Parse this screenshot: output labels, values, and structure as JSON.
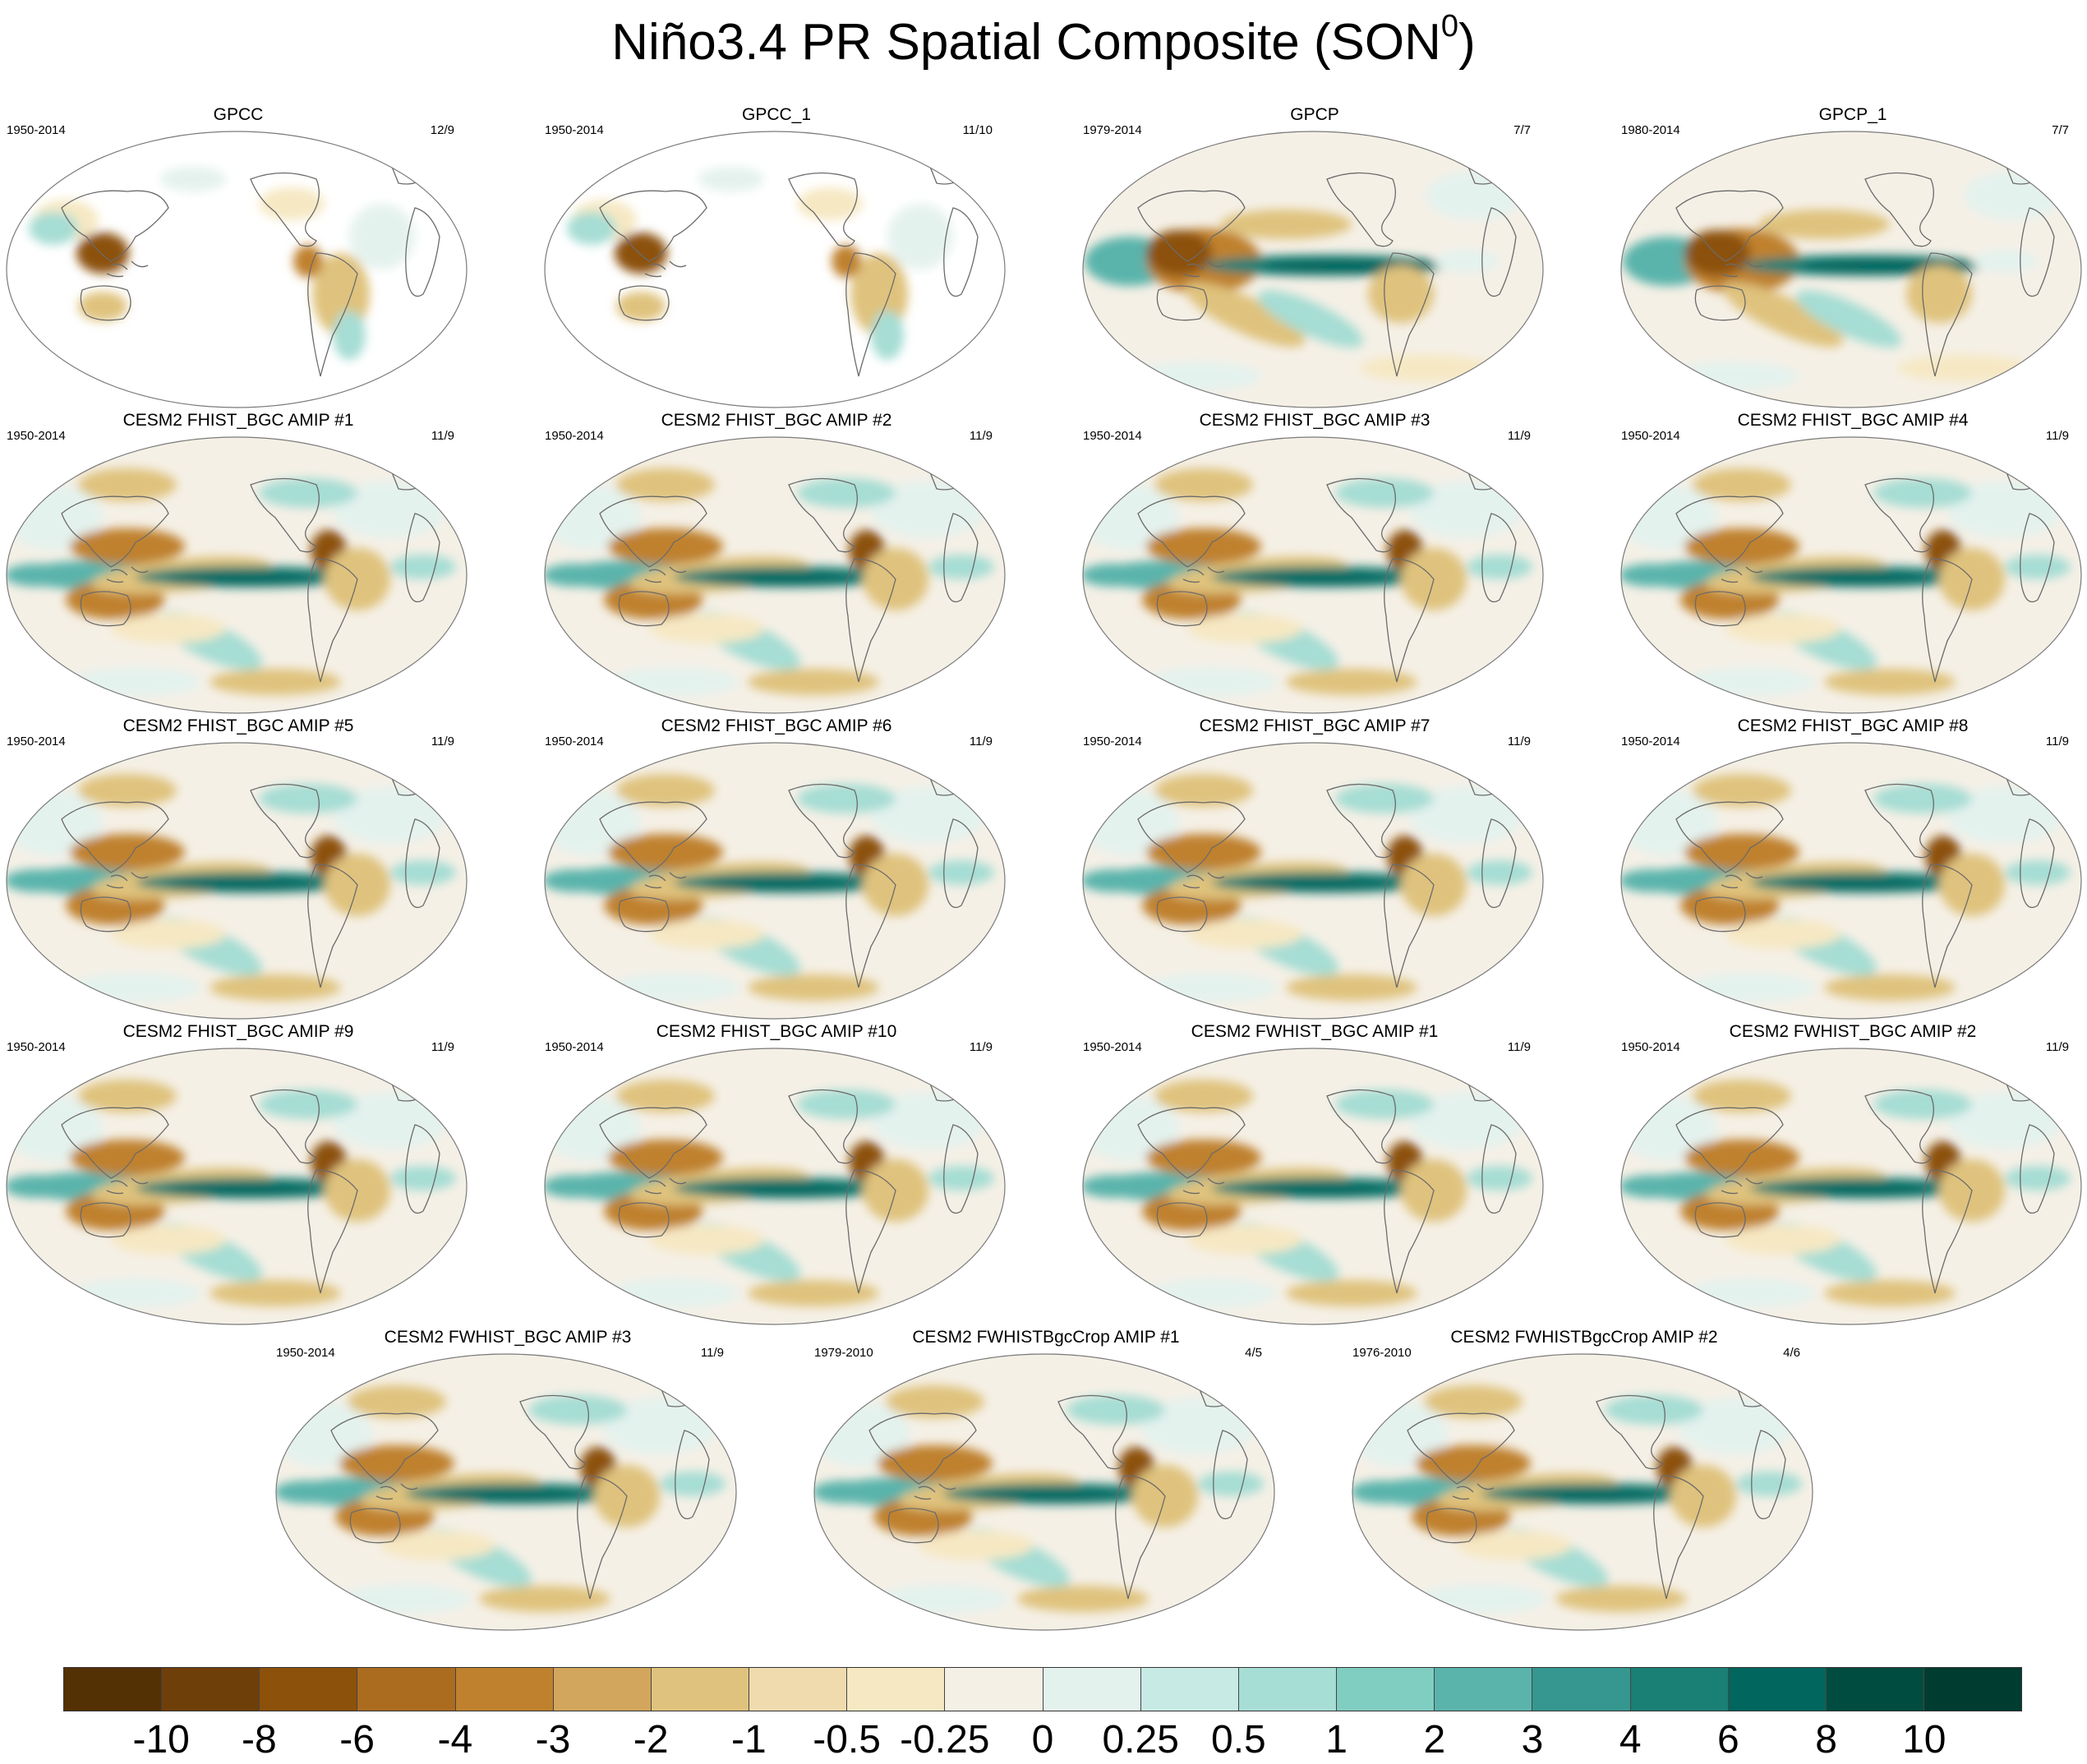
{
  "figure": {
    "title": "Niño3.4 PR Spatial Composite (SON",
    "title_superscript": "0",
    "title_close": ")"
  },
  "panels": [
    {
      "title": "GPCC",
      "period": "1950-2014",
      "count": "12/9",
      "style": "obs-land"
    },
    {
      "title": "GPCC_1",
      "period": "1950-2014",
      "count": "11/10",
      "style": "obs-land"
    },
    {
      "title": "GPCP",
      "period": "1979-2014",
      "count": "7/7",
      "style": "obs-global"
    },
    {
      "title": "GPCP_1",
      "period": "1980-2014",
      "count": "7/7",
      "style": "obs-global"
    },
    {
      "title": "CESM2 FHIST_BGC AMIP #1",
      "period": "1950-2014",
      "count": "11/9",
      "style": "model"
    },
    {
      "title": "CESM2 FHIST_BGC AMIP #2",
      "period": "1950-2014",
      "count": "11/9",
      "style": "model"
    },
    {
      "title": "CESM2 FHIST_BGC AMIP #3",
      "period": "1950-2014",
      "count": "11/9",
      "style": "model"
    },
    {
      "title": "CESM2 FHIST_BGC AMIP #4",
      "period": "1950-2014",
      "count": "11/9",
      "style": "model"
    },
    {
      "title": "CESM2 FHIST_BGC AMIP #5",
      "period": "1950-2014",
      "count": "11/9",
      "style": "model"
    },
    {
      "title": "CESM2 FHIST_BGC AMIP #6",
      "period": "1950-2014",
      "count": "11/9",
      "style": "model"
    },
    {
      "title": "CESM2 FHIST_BGC AMIP #7",
      "period": "1950-2014",
      "count": "11/9",
      "style": "model"
    },
    {
      "title": "CESM2 FHIST_BGC AMIP #8",
      "period": "1950-2014",
      "count": "11/9",
      "style": "model"
    },
    {
      "title": "CESM2 FHIST_BGC AMIP #9",
      "period": "1950-2014",
      "count": "11/9",
      "style": "model"
    },
    {
      "title": "CESM2 FHIST_BGC AMIP #10",
      "period": "1950-2014",
      "count": "11/9",
      "style": "model"
    },
    {
      "title": "CESM2 FWHIST_BGC AMIP #1",
      "period": "1950-2014",
      "count": "11/9",
      "style": "model"
    },
    {
      "title": "CESM2 FWHIST_BGC AMIP #2",
      "period": "1950-2014",
      "count": "11/9",
      "style": "model"
    },
    {
      "title": "CESM2 FWHIST_BGC AMIP #3",
      "period": "1950-2014",
      "count": "11/9",
      "style": "model"
    },
    {
      "title": "CESM2 FWHISTBgcCrop AMIP #1",
      "period": "1979-2010",
      "count": "4/5",
      "style": "model"
    },
    {
      "title": "CESM2 FWHISTBgcCrop AMIP #2",
      "period": "1976-2010",
      "count": "4/6",
      "style": "model"
    }
  ],
  "colorbar": {
    "labels": [
      "-10",
      "-8",
      "-6",
      "-4",
      "-3",
      "-2",
      "-1",
      "-0.5",
      "-0.25",
      "0",
      "0.25",
      "0.5",
      "1",
      "2",
      "3",
      "4",
      "6",
      "8",
      "10"
    ],
    "colors": [
      "#543005",
      "#6f3f0a",
      "#8c510a",
      "#ab6c20",
      "#bf812d",
      "#d2a65c",
      "#dfc27d",
      "#efdbad",
      "#f6e8c3",
      "#f5f0e6",
      "#e4f2ee",
      "#c7eae5",
      "#a6ddd4",
      "#80cdc1",
      "#5ab4ac",
      "#35978f",
      "#1a7f74",
      "#01665e",
      "#014c40",
      "#003c30"
    ]
  }
}
